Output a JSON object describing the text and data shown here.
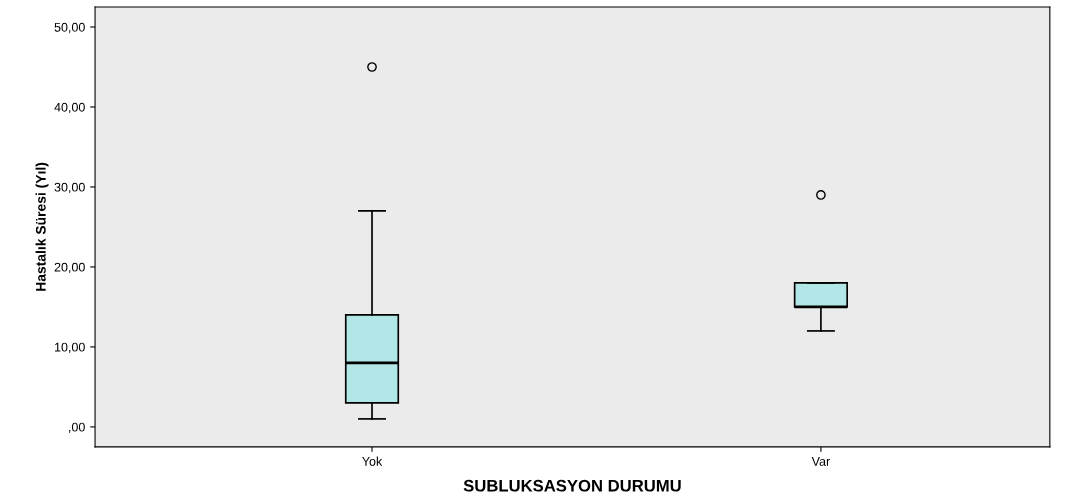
{
  "chart_data": {
    "type": "box",
    "xlabel": "SUBLUKSASYON DURUMU",
    "ylabel": "Hastalık Süresi (Yıl)",
    "categories": [
      "Yok",
      "Var"
    ],
    "color": "#b3e6e6",
    "boxes": [
      {
        "low": 1,
        "q1": 3,
        "median": 8,
        "q3": 14,
        "high": 27,
        "outliers": [
          45
        ]
      },
      {
        "low": 12,
        "q1": 15,
        "median": 15,
        "q3": 18,
        "high": 18,
        "outliers": [
          29
        ]
      }
    ],
    "ylim": [
      -2.5,
      52.5
    ],
    "yticks": [
      {
        "value": 0,
        "label": ",00"
      },
      {
        "value": 10,
        "label": "10,00"
      },
      {
        "value": 20,
        "label": "20,00"
      },
      {
        "value": 30,
        "label": "30,00"
      },
      {
        "value": 40,
        "label": "40,00"
      },
      {
        "value": 50,
        "label": "50,00"
      }
    ],
    "grid": false
  }
}
